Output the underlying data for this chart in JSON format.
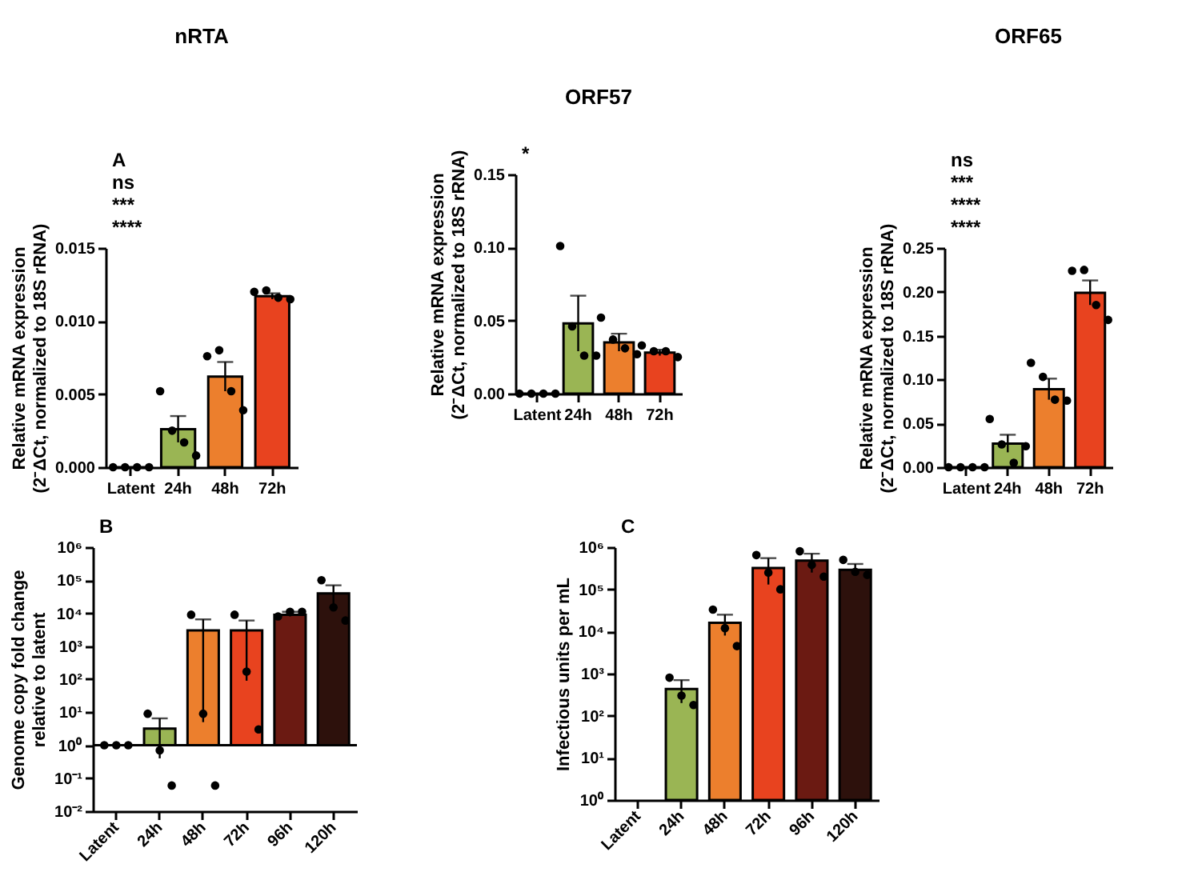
{
  "chart_data": [
    {
      "type": "bar",
      "title": "nRTA",
      "ylabel": "Relative mRNA expression\n(2⁻ΔCt, normalized to 18S rRNA)",
      "annotations": [
        "A",
        "ns",
        "***",
        "****"
      ],
      "categories": [
        "Latent",
        "24h",
        "48h",
        "72h"
      ],
      "ylim": [
        0,
        0.015
      ],
      "yticks": [
        {
          "value": 0,
          "label": "0.000"
        },
        {
          "value": 0.005,
          "label": "0.005"
        },
        {
          "value": 0.01,
          "label": "0.010"
        },
        {
          "value": 0.015,
          "label": "0.015"
        }
      ],
      "marker": "circle",
      "series": [
        {
          "colors": [
            "#000000",
            "#9ab554",
            "#ec7f2d",
            "#e8431f"
          ],
          "values": [
            0,
            0.0026,
            0.0062,
            0.0117
          ],
          "errors": [
            null,
            0.0009,
            0.001,
            0.0002
          ]
        },
        {
          "type": "scatter",
          "color": "#000000",
          "x": [
            "Latent",
            "Latent",
            "Latent",
            "Latent",
            "24h",
            "24h",
            "24h",
            "24h",
            "48h",
            "48h",
            "48h",
            "48h",
            "72h",
            "72h",
            "72h",
            "72h"
          ],
          "values": [
            0,
            0,
            0,
            0,
            0.0052,
            0.0025,
            0.0017,
            0.0008,
            0.0076,
            0.008,
            0.0052,
            0.0039,
            0.012,
            0.0121,
            0.0116,
            0.0115
          ]
        }
      ]
    },
    {
      "type": "bar",
      "title": "ORF57",
      "ylabel": "Relative mRNA expression\n(2⁻ΔCt, normalized to 18S rRNA)",
      "annotations": [
        "*"
      ],
      "categories": [
        "Latent",
        "24h",
        "48h",
        "72h"
      ],
      "ylim": [
        0,
        0.15
      ],
      "yticks": [
        {
          "value": 0,
          "label": "0.00"
        },
        {
          "value": 0.05,
          "label": "0.05"
        },
        {
          "value": 0.1,
          "label": "0.10"
        },
        {
          "value": 0.15,
          "label": "0.15"
        }
      ],
      "marker": "circle",
      "series": [
        {
          "colors": [
            "#000000",
            "#9ab554",
            "#ec7f2d",
            "#e8431f"
          ],
          "values": [
            0,
            0.048,
            0.035,
            0.028
          ],
          "errors": [
            null,
            0.019,
            0.006,
            0.002
          ]
        },
        {
          "type": "scatter",
          "color": "#000000",
          "x": [
            "Latent",
            "Latent",
            "Latent",
            "Latent",
            "24h",
            "24h",
            "24h",
            "24h",
            "48h",
            "48h",
            "48h",
            "48h",
            "72h",
            "72h",
            "72h",
            "72h"
          ],
          "values": [
            0,
            0,
            0,
            0,
            0.101,
            0.046,
            0.026,
            0.026,
            0.052,
            0.037,
            0.031,
            0.027,
            0.033,
            0.029,
            0.029,
            0.025
          ]
        }
      ]
    },
    {
      "type": "bar",
      "title": "ORF65",
      "ylabel": "Relative mRNA expression\n(2⁻ΔCt, normalized to 18S rRNA)",
      "annotations": [
        "ns",
        "***",
        "****",
        "****"
      ],
      "categories": [
        "Latent",
        "24h",
        "48h",
        "72h"
      ],
      "ylim": [
        0,
        0.25
      ],
      "yticks": [
        {
          "value": 0,
          "label": "0.00"
        },
        {
          "value": 0.05,
          "label": "0.05"
        },
        {
          "value": 0.1,
          "label": "0.10"
        },
        {
          "value": 0.15,
          "label": "0.15"
        },
        {
          "value": 0.2,
          "label": "0.20"
        },
        {
          "value": 0.25,
          "label": "0.25"
        }
      ],
      "marker": "circle",
      "series": [
        {
          "colors": [
            "#000000",
            "#9ab554",
            "#ec7f2d",
            "#e8431f"
          ],
          "values": [
            0,
            0.027,
            0.089,
            0.199
          ],
          "errors": [
            null,
            0.01,
            0.012,
            0.014
          ]
        },
        {
          "type": "scatter",
          "color": "#000000",
          "x": [
            "Latent",
            "Latent",
            "Latent",
            "Latent",
            "24h",
            "24h",
            "24h",
            "24h",
            "48h",
            "48h",
            "48h",
            "48h",
            "72h",
            "72h",
            "72h",
            "72h"
          ],
          "values": [
            0,
            0,
            0,
            0,
            0.055,
            0.026,
            0.005,
            0.024,
            0.119,
            0.103,
            0.077,
            0.076,
            0.224,
            0.225,
            0.185,
            0.168
          ]
        }
      ]
    },
    {
      "type": "bar",
      "ylabel": "Genome copy fold change\nrelative to latent",
      "annotations": [
        "B"
      ],
      "categories": [
        "Latent",
        "24h",
        "48h",
        "72h",
        "96h",
        "120h"
      ],
      "log": true,
      "ylim": [
        0.01,
        1000000
      ],
      "yticks": [
        {
          "value": 0.01,
          "label": "10⁻²"
        },
        {
          "value": 0.1,
          "label": "10⁻¹"
        },
        {
          "value": 1,
          "label": "10⁰"
        },
        {
          "value": 10,
          "label": "10¹"
        },
        {
          "value": 100,
          "label": "10²"
        },
        {
          "value": 1000,
          "label": "10³"
        },
        {
          "value": 10000,
          "label": "10⁴"
        },
        {
          "value": 100000,
          "label": "10⁵"
        },
        {
          "value": 1000000,
          "label": "10⁶"
        }
      ],
      "ref_lines": [
        {
          "axis": "y",
          "value": 1,
          "label": null
        }
      ],
      "marker": "circle",
      "series": [
        {
          "colors": [
            "#000000",
            "#9ab554",
            "#ec7f2d",
            "#e8431f",
            "#6b1a12",
            "#2d110c"
          ],
          "base": [
            1,
            1,
            1,
            1,
            1,
            1
          ],
          "values": [
            0,
            2.2,
            2999,
            2999,
            8999,
            39999
          ],
          "errors": [
            null,
            [
              0.4,
              6.5
            ],
            [
              5,
              6500
            ],
            [
              90,
              6000
            ],
            [
              8000,
              11000
            ],
            [
              15000,
              70000
            ]
          ]
        },
        {
          "type": "scatter",
          "color": "#000000",
          "x": [
            "Latent",
            "Latent",
            "Latent",
            "24h",
            "24h",
            "24h",
            "48h",
            "48h",
            "48h",
            "72h",
            "72h",
            "72h",
            "96h",
            "96h",
            "96h",
            "120h",
            "120h",
            "120h"
          ],
          "values": [
            1,
            1,
            1,
            9,
            0.7,
            0.06,
            9000,
            9,
            0.06,
            9000,
            170,
            3,
            8000,
            11000,
            11000,
            100000,
            15000,
            6000
          ]
        }
      ]
    },
    {
      "type": "bar",
      "ylabel": "Infectious units per mL",
      "annotations": [
        "C"
      ],
      "categories": [
        "Latent",
        "24h",
        "48h",
        "72h",
        "96h",
        "120h"
      ],
      "log": true,
      "ylim": [
        1,
        1000000
      ],
      "yticks": [
        {
          "value": 1,
          "label": "10⁰"
        },
        {
          "value": 10,
          "label": "10¹"
        },
        {
          "value": 100,
          "label": "10²"
        },
        {
          "value": 1000,
          "label": "10³"
        },
        {
          "value": 10000,
          "label": "10⁴"
        },
        {
          "value": 100000,
          "label": "10⁵"
        },
        {
          "value": 1000000,
          "label": "10⁶"
        }
      ],
      "marker": "circle",
      "series": [
        {
          "colors": [
            null,
            "#9ab554",
            "#ec7f2d",
            "#e8431f",
            "#6b1a12",
            "#2d110c"
          ],
          "values": [
            null,
            430,
            16000,
            320000,
            480000,
            290000
          ],
          "errors": [
            null,
            [
              200,
              700
            ],
            [
              8000,
              25000
            ],
            [
              130000,
              550000
            ],
            [
              250000,
              700000
            ],
            [
              220000,
              400000
            ]
          ]
        },
        {
          "type": "scatter",
          "color": "#000000",
          "x": [
            "24h",
            "24h",
            "24h",
            "48h",
            "48h",
            "48h",
            "72h",
            "72h",
            "72h",
            "96h",
            "96h",
            "96h",
            "120h",
            "120h",
            "120h"
          ],
          "values": [
            800,
            300,
            180,
            33000,
            12000,
            4500,
            650000,
            250000,
            100000,
            800000,
            380000,
            200000,
            500000,
            260000,
            220000
          ]
        }
      ]
    }
  ]
}
